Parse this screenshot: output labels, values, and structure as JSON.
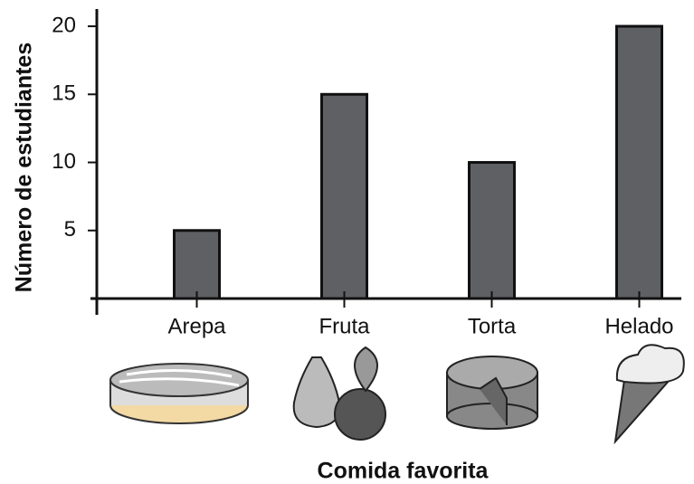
{
  "chart_data": {
    "type": "bar",
    "categories": [
      "Arepa",
      "Fruta",
      "Torta",
      "Helado"
    ],
    "values": [
      5,
      15,
      10,
      20
    ],
    "color": "#5f6064",
    "ylim": [
      0,
      21
    ],
    "yticks": [
      5,
      10,
      15,
      20
    ],
    "xlabel": "Comida favorita",
    "ylabel": "Número de estudiantes"
  }
}
